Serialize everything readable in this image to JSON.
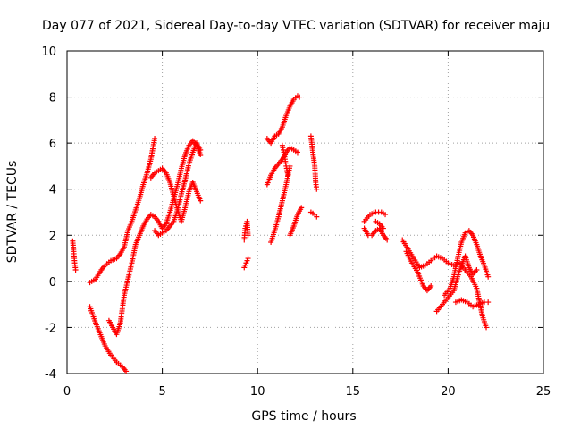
{
  "chart_data": {
    "type": "scatter",
    "title": "Day 077 of 2021, Sidereal Day-to-day VTEC variation (SDTVAR) for receiver maju",
    "xlabel": "GPS time / hours",
    "ylabel": "SDTVAR / TECUs",
    "xlim": [
      0,
      25
    ],
    "ylim": [
      -4,
      10
    ],
    "xticks": [
      "0",
      "5",
      "10",
      "15",
      "20",
      "25"
    ],
    "yticks": [
      "-4",
      "-2",
      "0",
      "2",
      "4",
      "6",
      "8",
      "10"
    ],
    "grid": true,
    "legend": "none",
    "marker": "+",
    "series": [
      {
        "name": "SDTVAR",
        "color": "#ff0000",
        "tracks": [
          [
            [
              0.3,
              1.75
            ],
            [
              0.35,
              1.3
            ],
            [
              0.4,
              0.8
            ],
            [
              0.45,
              0.5
            ]
          ],
          [
            [
              1.2,
              -0.05
            ],
            [
              1.5,
              0.1
            ],
            [
              1.8,
              0.5
            ],
            [
              2.0,
              0.7
            ],
            [
              2.3,
              0.9
            ],
            [
              2.6,
              1.0
            ],
            [
              2.8,
              1.2
            ],
            [
              3.0,
              1.5
            ],
            [
              3.2,
              2.2
            ],
            [
              3.4,
              2.6
            ],
            [
              3.6,
              3.1
            ],
            [
              3.8,
              3.6
            ],
            [
              4.0,
              4.2
            ],
            [
              4.2,
              4.7
            ],
            [
              4.4,
              5.3
            ],
            [
              4.6,
              6.2
            ]
          ],
          [
            [
              1.2,
              -1.1
            ],
            [
              1.5,
              -1.8
            ],
            [
              1.8,
              -2.4
            ],
            [
              2.0,
              -2.8
            ],
            [
              2.3,
              -3.2
            ],
            [
              2.6,
              -3.5
            ],
            [
              2.9,
              -3.7
            ],
            [
              3.1,
              -3.9
            ]
          ],
          [
            [
              2.2,
              -1.7
            ],
            [
              2.4,
              -2.0
            ],
            [
              2.6,
              -2.3
            ],
            [
              2.8,
              -1.8
            ],
            [
              2.9,
              -1.2
            ],
            [
              3.0,
              -0.6
            ],
            [
              3.2,
              0.1
            ],
            [
              3.4,
              0.8
            ],
            [
              3.6,
              1.6
            ],
            [
              3.8,
              2.0
            ],
            [
              4.0,
              2.4
            ],
            [
              4.2,
              2.7
            ],
            [
              4.4,
              2.9
            ],
            [
              4.6,
              2.8
            ],
            [
              4.8,
              2.6
            ],
            [
              5.0,
              2.3
            ],
            [
              5.2,
              2.5
            ],
            [
              5.4,
              3.0
            ],
            [
              5.6,
              3.6
            ],
            [
              5.8,
              4.2
            ],
            [
              6.0,
              4.9
            ],
            [
              6.2,
              5.5
            ],
            [
              6.4,
              5.9
            ],
            [
              6.6,
              6.1
            ],
            [
              6.8,
              5.9
            ],
            [
              7.0,
              5.5
            ]
          ],
          [
            [
              4.4,
              4.5
            ],
            [
              4.6,
              4.7
            ],
            [
              4.8,
              4.8
            ],
            [
              5.0,
              4.9
            ],
            [
              5.2,
              4.7
            ],
            [
              5.4,
              4.3
            ],
            [
              5.6,
              3.7
            ],
            [
              5.8,
              3.1
            ],
            [
              6.0,
              2.6
            ],
            [
              6.2,
              3.2
            ],
            [
              6.4,
              3.9
            ],
            [
              6.6,
              4.3
            ],
            [
              6.8,
              3.9
            ],
            [
              7.0,
              3.5
            ]
          ],
          [
            [
              4.6,
              2.2
            ],
            [
              4.8,
              2.0
            ],
            [
              5.0,
              2.1
            ],
            [
              5.2,
              2.2
            ],
            [
              5.4,
              2.4
            ],
            [
              5.6,
              2.6
            ],
            [
              5.8,
              3.1
            ],
            [
              6.0,
              3.8
            ],
            [
              6.2,
              4.4
            ],
            [
              6.4,
              5.1
            ],
            [
              6.6,
              5.6
            ],
            [
              6.8,
              6.0
            ],
            [
              7.0,
              5.7
            ]
          ],
          [
            [
              9.3,
              1.8
            ],
            [
              9.35,
              2.3
            ],
            [
              9.45,
              2.6
            ],
            [
              9.5,
              2.0
            ]
          ],
          [
            [
              9.3,
              0.6
            ],
            [
              9.4,
              0.8
            ],
            [
              9.5,
              1.0
            ]
          ],
          [
            [
              10.5,
              6.2
            ],
            [
              10.7,
              6.0
            ],
            [
              10.9,
              6.3
            ],
            [
              11.1,
              6.4
            ],
            [
              11.3,
              6.7
            ],
            [
              11.5,
              7.2
            ],
            [
              11.7,
              7.6
            ],
            [
              11.9,
              7.9
            ],
            [
              12.1,
              8.05
            ],
            [
              12.2,
              8.0
            ]
          ],
          [
            [
              10.5,
              4.2
            ],
            [
              10.7,
              4.6
            ],
            [
              10.9,
              4.9
            ],
            [
              11.1,
              5.1
            ],
            [
              11.3,
              5.3
            ],
            [
              11.5,
              5.6
            ],
            [
              11.7,
              5.8
            ],
            [
              11.9,
              5.7
            ],
            [
              12.1,
              5.6
            ]
          ],
          [
            [
              10.7,
              1.7
            ],
            [
              10.9,
              2.2
            ],
            [
              11.1,
              2.8
            ],
            [
              11.3,
              3.5
            ],
            [
              11.5,
              4.2
            ],
            [
              11.7,
              5.0
            ]
          ],
          [
            [
              11.3,
              5.9
            ],
            [
              11.4,
              5.5
            ],
            [
              11.5,
              5.0
            ],
            [
              11.6,
              4.6
            ]
          ],
          [
            [
              11.7,
              2.0
            ],
            [
              11.9,
              2.4
            ],
            [
              12.1,
              2.9
            ],
            [
              12.3,
              3.2
            ]
          ],
          [
            [
              12.8,
              6.3
            ],
            [
              12.9,
              5.6
            ],
            [
              13.0,
              5.0
            ],
            [
              13.05,
              4.3
            ],
            [
              13.1,
              4.0
            ]
          ],
          [
            [
              12.8,
              3.0
            ],
            [
              13.0,
              2.9
            ],
            [
              13.1,
              2.8
            ]
          ],
          [
            [
              15.6,
              2.6
            ],
            [
              15.9,
              2.9
            ],
            [
              16.2,
              3.0
            ],
            [
              16.5,
              3.0
            ],
            [
              16.7,
              2.9
            ]
          ],
          [
            [
              15.6,
              2.3
            ],
            [
              15.8,
              2.0
            ],
            [
              16.0,
              2.0
            ],
            [
              16.2,
              2.2
            ],
            [
              16.4,
              2.3
            ],
            [
              16.6,
              2.0
            ],
            [
              16.8,
              1.8
            ]
          ],
          [
            [
              16.2,
              2.6
            ],
            [
              16.4,
              2.5
            ],
            [
              16.6,
              2.3
            ]
          ],
          [
            [
              17.6,
              1.8
            ],
            [
              17.9,
              1.4
            ],
            [
              18.2,
              1.0
            ],
            [
              18.5,
              0.6
            ],
            [
              18.8,
              0.7
            ],
            [
              19.1,
              0.9
            ],
            [
              19.4,
              1.1
            ],
            [
              19.7,
              1.0
            ],
            [
              20.0,
              0.8
            ],
            [
              20.3,
              0.7
            ],
            [
              20.6,
              0.8
            ],
            [
              20.9,
              0.5
            ],
            [
              21.2,
              0.2
            ],
            [
              21.5,
              -0.3
            ],
            [
              21.8,
              -1.5
            ],
            [
              22.0,
              -2.0
            ]
          ],
          [
            [
              17.8,
              1.3
            ],
            [
              18.1,
              0.8
            ],
            [
              18.4,
              0.4
            ],
            [
              18.7,
              -0.2
            ],
            [
              18.9,
              -0.4
            ],
            [
              19.1,
              -0.2
            ]
          ],
          [
            [
              19.4,
              -1.3
            ],
            [
              19.7,
              -1.0
            ],
            [
              20.0,
              -0.7
            ],
            [
              20.3,
              -0.4
            ],
            [
              20.5,
              0.2
            ],
            [
              20.7,
              0.7
            ],
            [
              20.9,
              1.1
            ],
            [
              21.1,
              0.6
            ],
            [
              21.3,
              0.3
            ],
            [
              21.5,
              0.5
            ]
          ],
          [
            [
              19.8,
              -0.6
            ],
            [
              20.1,
              -0.3
            ],
            [
              20.3,
              0.2
            ],
            [
              20.5,
              1.0
            ],
            [
              20.7,
              1.7
            ],
            [
              20.9,
              2.1
            ],
            [
              21.1,
              2.2
            ],
            [
              21.3,
              2.0
            ],
            [
              21.5,
              1.6
            ],
            [
              21.7,
              1.1
            ],
            [
              21.9,
              0.7
            ],
            [
              22.1,
              0.2
            ]
          ],
          [
            [
              20.4,
              -0.9
            ],
            [
              20.7,
              -0.8
            ],
            [
              21.0,
              -0.9
            ],
            [
              21.3,
              -1.1
            ],
            [
              21.6,
              -1.0
            ],
            [
              21.9,
              -0.9
            ],
            [
              22.1,
              -0.9
            ]
          ]
        ]
      }
    ]
  }
}
